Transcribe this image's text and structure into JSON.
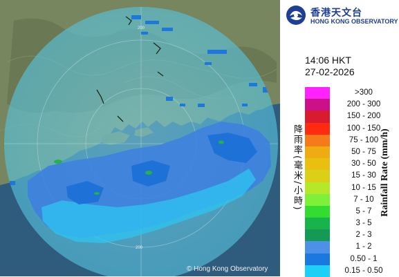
{
  "org": {
    "name_zh": "香港天文台",
    "name_en": "HONG KONG OBSERVATORY",
    "copyright": "© Hong Kong Observatory"
  },
  "timestamp": {
    "time": "14:06 HKT",
    "date": "27-02-2026"
  },
  "legend": {
    "title_zh": "降雨率(毫米/小時)",
    "title_en": "Rainfall Rate (mm/h)",
    "items": [
      {
        "label": ">300",
        "color": "#ff22ff"
      },
      {
        "label": "200 - 300",
        "color": "#cc1188"
      },
      {
        "label": "150 - 200",
        "color": "#d81b2f"
      },
      {
        "label": "100 - 150",
        "color": "#ff2a10"
      },
      {
        "label": "75 - 100",
        "color": "#f47a1a"
      },
      {
        "label": "50 - 75",
        "color": "#eeac12"
      },
      {
        "label": "30 - 50",
        "color": "#e9c010"
      },
      {
        "label": "15 - 30",
        "color": "#dccf18"
      },
      {
        "label": "10 - 15",
        "color": "#b6e82a"
      },
      {
        "label": "7 - 10",
        "color": "#7ff03a"
      },
      {
        "label": "5 - 7",
        "color": "#33dc2e"
      },
      {
        "label": "3 - 5",
        "color": "#18b34a"
      },
      {
        "label": "2 - 3",
        "color": "#149a54"
      },
      {
        "label": "1 - 2",
        "color": "#4c90e8"
      },
      {
        "label": "0.50 - 1",
        "color": "#1a78e0"
      },
      {
        "label": "0.15 - 0.50",
        "color": "#1ed0f6"
      }
    ]
  },
  "map": {
    "range_ring_labels": [
      "200",
      "200"
    ],
    "colors": {
      "sea": "#345f80",
      "land": "#76855d",
      "radar_coverage": "rgba(105,200,225,0.55)"
    }
  }
}
